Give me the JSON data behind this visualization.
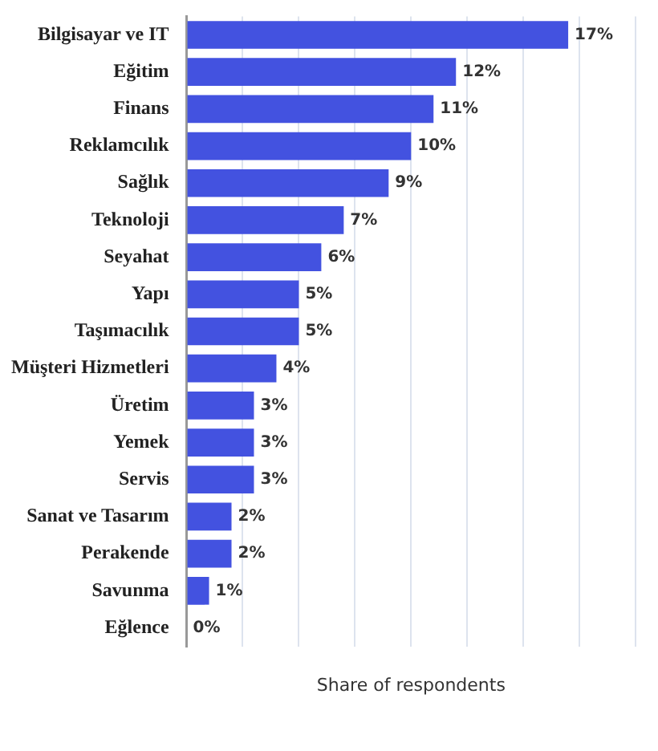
{
  "chart_data": {
    "type": "bar",
    "orientation": "horizontal",
    "xlabel": "Share of respondents",
    "categories": [
      "Bilgisayar ve IT",
      "Eğitim",
      "Finans",
      "Reklamcılık",
      "Sağlık",
      "Teknoloji",
      "Seyahat",
      "Yapı",
      "Taşımacılık",
      "Müşteri Hizmetleri",
      "Üretim",
      "Yemek",
      "Servis",
      "Sanat ve Tasarım",
      "Perakende",
      "Savunma",
      "Eğlence"
    ],
    "values": [
      17,
      12,
      11,
      10,
      9,
      7,
      6,
      5,
      5,
      4,
      3,
      3,
      3,
      2,
      2,
      1,
      0
    ],
    "value_labels": [
      "17%",
      "12%",
      "11%",
      "10%",
      "9%",
      "7%",
      "6%",
      "5%",
      "5%",
      "4%",
      "3%",
      "3%",
      "3%",
      "2%",
      "2%",
      "1%",
      "0%"
    ],
    "color": "#4352e0",
    "xlim": [
      0,
      20
    ],
    "xticks": [
      {
        "value": 0,
        "label": null
      },
      {
        "value": 2.5,
        "label": null
      },
      {
        "value": 5,
        "label": null
      },
      {
        "value": 7.5,
        "label": null
      },
      {
        "value": 10,
        "label": null
      },
      {
        "value": 12.5,
        "label": null
      },
      {
        "value": 15,
        "label": null
      },
      {
        "value": 17.5,
        "label": null
      },
      {
        "value": 20,
        "label": null
      }
    ],
    "grid": "x",
    "tick_labels": "y"
  }
}
